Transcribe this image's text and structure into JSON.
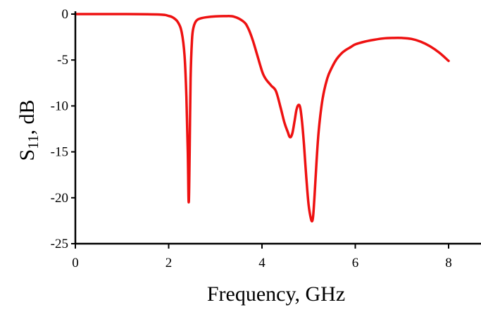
{
  "chart_data": {
    "type": "line",
    "title": "",
    "xlabel": "Frequency, GHz",
    "ylabel_main": "S",
    "ylabel_sub": "11",
    "ylabel_rest": ", dB",
    "xlim": [
      0,
      8
    ],
    "ylim": [
      -25,
      0
    ],
    "x_ticks": [
      0,
      2,
      4,
      6,
      8
    ],
    "x_tick_labels": [
      "0",
      "2",
      "4",
      "6",
      "8"
    ],
    "y_ticks": [
      0,
      -5,
      -10,
      -15,
      -20,
      -25
    ],
    "y_tick_labels": [
      "0",
      "-5",
      "-10",
      "-15",
      "-20",
      "-25"
    ],
    "grid": false,
    "line_color": "#ee1111",
    "series": [
      {
        "x": [
          0,
          1.0,
          1.8,
          2.0,
          2.1,
          2.2,
          2.28,
          2.34,
          2.38,
          2.41,
          2.43,
          2.45,
          2.47,
          2.5,
          2.53,
          2.57,
          2.62,
          2.7,
          2.8,
          3.0,
          3.2,
          3.4,
          3.6,
          3.7,
          3.8,
          3.9,
          4.0,
          4.05,
          4.1,
          4.2,
          4.3,
          4.4,
          4.48,
          4.55,
          4.6,
          4.65,
          4.7,
          4.74,
          4.78,
          4.82,
          4.86,
          4.9,
          4.95,
          5.0,
          5.05,
          5.08,
          5.1,
          5.13,
          5.17,
          5.22,
          5.3,
          5.4,
          5.5,
          5.6,
          5.7,
          5.8,
          5.9,
          6.0,
          6.2,
          6.4,
          6.6,
          6.8,
          7.0,
          7.2,
          7.4,
          7.6,
          7.8,
          8.0
        ],
        "y": [
          0,
          0,
          -0.05,
          -0.2,
          -0.4,
          -0.9,
          -2.0,
          -4.5,
          -9.0,
          -15.0,
          -20.5,
          -15.0,
          -7.0,
          -2.8,
          -1.5,
          -0.9,
          -0.6,
          -0.45,
          -0.35,
          -0.25,
          -0.22,
          -0.28,
          -0.8,
          -1.5,
          -2.8,
          -4.5,
          -6.2,
          -6.8,
          -7.2,
          -7.8,
          -8.4,
          -10.2,
          -11.8,
          -12.8,
          -13.4,
          -13.0,
          -11.6,
          -10.4,
          -9.9,
          -10.2,
          -11.8,
          -14.2,
          -17.8,
          -20.8,
          -22.3,
          -22.5,
          -21.8,
          -19.5,
          -16.0,
          -12.5,
          -9.2,
          -7.0,
          -5.8,
          -4.9,
          -4.3,
          -3.9,
          -3.6,
          -3.3,
          -3.0,
          -2.8,
          -2.65,
          -2.6,
          -2.6,
          -2.7,
          -3.0,
          -3.5,
          -4.2,
          -5.1
        ]
      }
    ]
  }
}
